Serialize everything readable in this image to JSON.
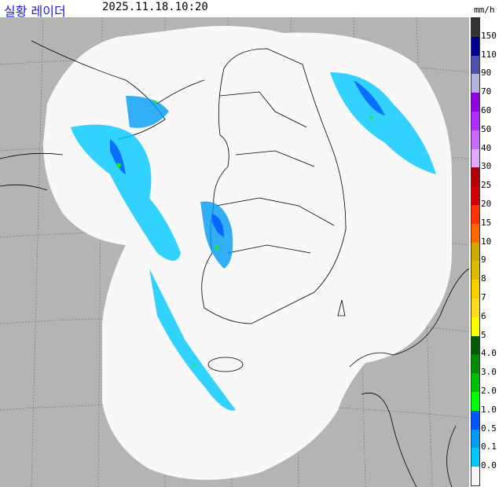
{
  "header": {
    "title": "실황 레이더",
    "timestamp": "2025.11.18.10:20",
    "unit": "mm/h"
  },
  "colors": {
    "background": "#b4b4b4",
    "coverage": "#f8f8f8",
    "boundary": "#000000"
  },
  "legend": {
    "segments": [
      {
        "color": "#333333"
      },
      {
        "color": "#000090",
        "label": "150"
      },
      {
        "color": "#4c4eb1",
        "label": "110"
      },
      {
        "color": "#b3b4de",
        "label": "90"
      },
      {
        "color": "#9300e4",
        "label": "70"
      },
      {
        "color": "#b329ff",
        "label": "60"
      },
      {
        "color": "#c969ff",
        "label": "50"
      },
      {
        "color": "#e0a9ff",
        "label": "40"
      },
      {
        "color": "#b40000",
        "label": "30"
      },
      {
        "color": "#d20000",
        "label": "25"
      },
      {
        "color": "#ff3200",
        "label": "20"
      },
      {
        "color": "#ff6600",
        "label": "15"
      },
      {
        "color": "#ccaa00",
        "label": "10"
      },
      {
        "color": "#e0b900",
        "label": "9"
      },
      {
        "color": "#ffcc00",
        "label": "8"
      },
      {
        "color": "#ffdc1f",
        "label": "7"
      },
      {
        "color": "#ffff00",
        "label": "6"
      },
      {
        "color": "#005a00",
        "label": "5"
      },
      {
        "color": "#008c00",
        "label": "4.0"
      },
      {
        "color": "#00be00",
        "label": "3.0"
      },
      {
        "color": "#00ff00",
        "label": "2.0"
      },
      {
        "color": "#0055ff",
        "label": "1.0"
      },
      {
        "color": "#009bf5",
        "label": "0.5"
      },
      {
        "color": "#00c8ff",
        "label": "0.1"
      },
      {
        "color": "#f8f8f8",
        "label": "0.0"
      }
    ]
  }
}
